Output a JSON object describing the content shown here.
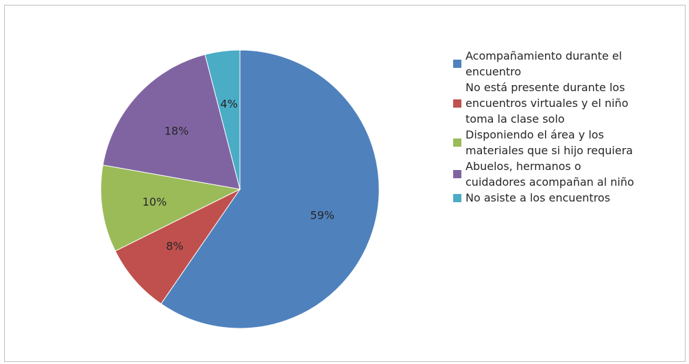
{
  "chart_data": {
    "type": "pie",
    "title": "",
    "legend_position": "right",
    "slices": [
      {
        "label": "Acompañamiento durante el encuentro",
        "label_lines": [
          "Acompañamiento durante el",
          "encuentro"
        ],
        "value": 59,
        "display": "59%",
        "color": "#4F81BD"
      },
      {
        "label": "No está presente durante los encuentros virtuales y el niño toma la clase solo",
        "label_lines": [
          "No está presente durante los",
          "encuentros virtuales y el niño",
          "toma la clase solo"
        ],
        "value": 8,
        "display": "8%",
        "color": "#C0504D"
      },
      {
        "label": "Disponiendo el área y los materiales que si hijo requiera",
        "label_lines": [
          "Disponiendo el área y los",
          "materiales que si hijo requiera"
        ],
        "value": 10,
        "display": "10%",
        "color": "#9BBB59"
      },
      {
        "label": "Abuelos, hermanos o cuidadores acompañan al niño",
        "label_lines": [
          "Abuelos, hermanos o",
          "cuidadores acompañan al niño"
        ],
        "value": 18,
        "display": "18%",
        "color": "#8064A2"
      },
      {
        "label": "No asiste a los encuentros",
        "label_lines": [
          "No asiste a los encuentros"
        ],
        "value": 4,
        "display": "4%",
        "color": "#4BACC6"
      }
    ]
  }
}
